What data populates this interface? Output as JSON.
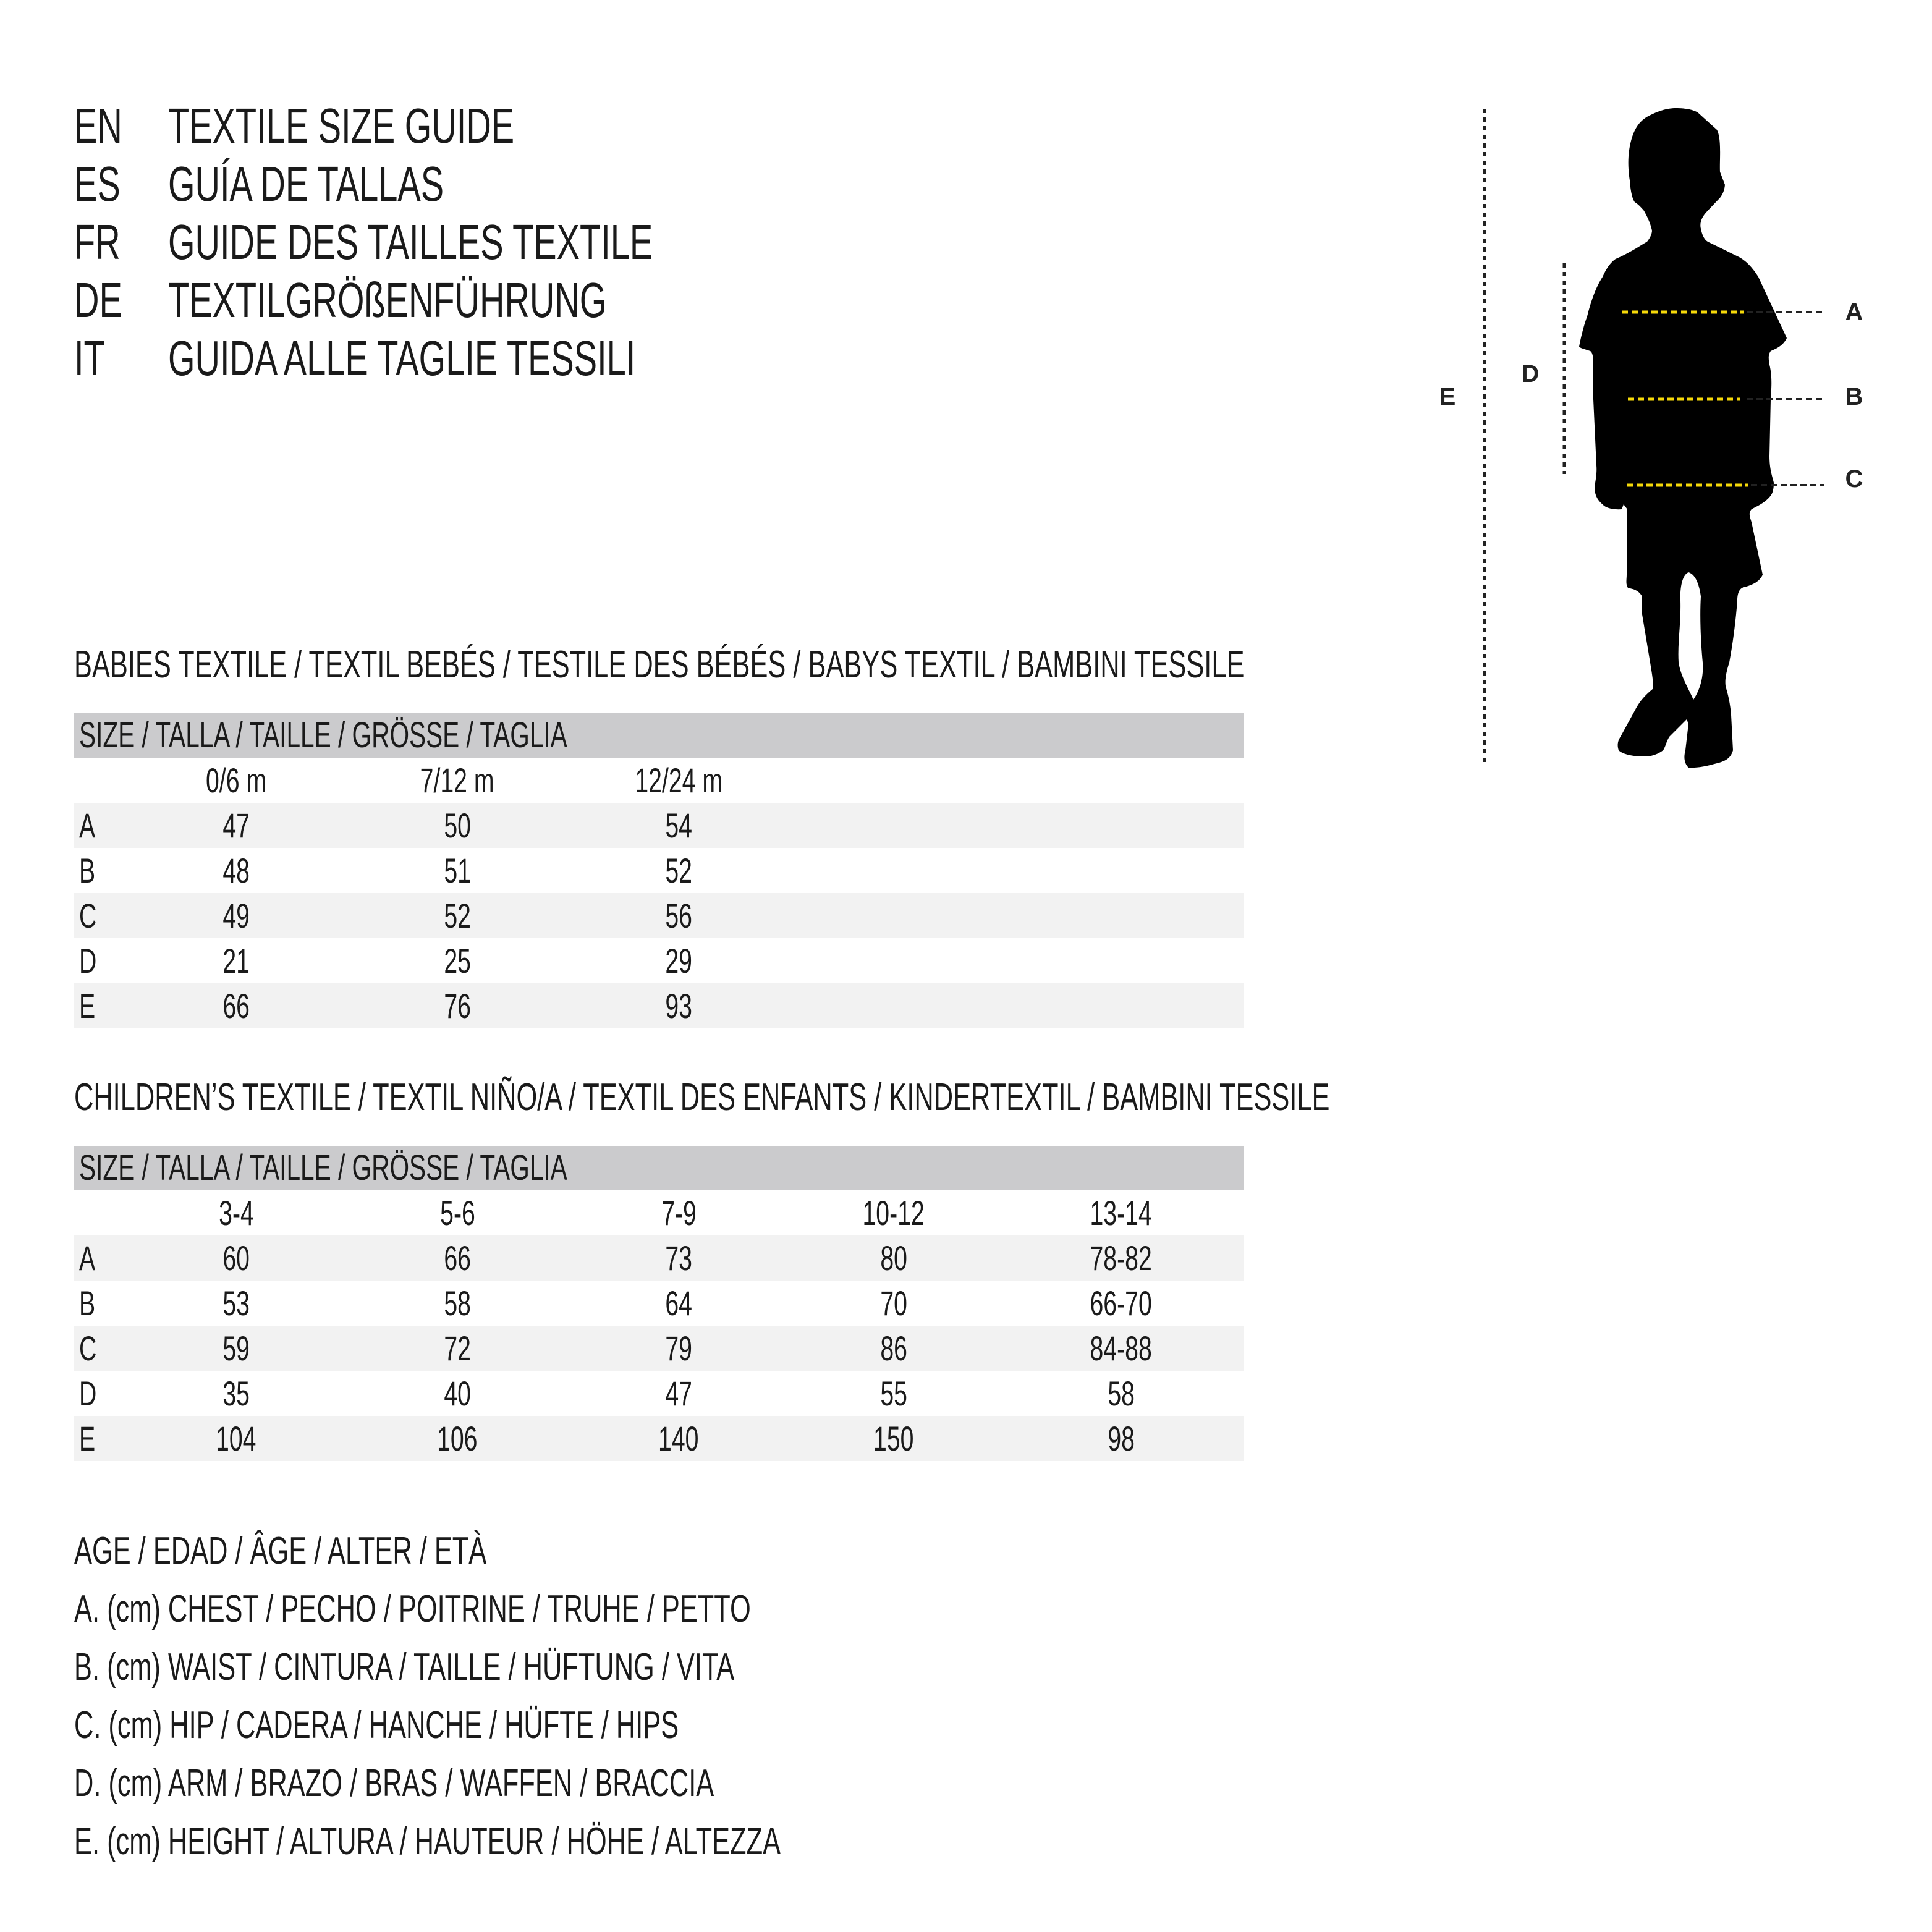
{
  "titles": [
    {
      "code": "EN",
      "text": "TEXTILE SIZE GUIDE"
    },
    {
      "code": "ES",
      "text": "GUÍA DE TALLAS"
    },
    {
      "code": "FR",
      "text": "GUIDE DES TAILLES TEXTILE"
    },
    {
      "code": "DE",
      "text": "TEXTILGRÖßENFÜHRUNG"
    },
    {
      "code": "IT",
      "text": "GUIDA ALLE TAGLIE TESSILI"
    }
  ],
  "babies": {
    "heading": "BABIES TEXTILE / TEXTIL BEBÉS / TESTILE DES BÉBÉS / BABYS TEXTIL / BAMBINI TESSILE",
    "size_header": "SIZE / TALLA / TAILLE / GRÖSSE / TAGLIA",
    "columns": [
      "0/6 m",
      "7/12 m",
      "12/24 m"
    ],
    "rows": [
      {
        "label": "A",
        "values": [
          "47",
          "50",
          "54"
        ]
      },
      {
        "label": "B",
        "values": [
          "48",
          "51",
          "52"
        ]
      },
      {
        "label": "C",
        "values": [
          "49",
          "52",
          "56"
        ]
      },
      {
        "label": "D",
        "values": [
          "21",
          "25",
          "29"
        ]
      },
      {
        "label": "E",
        "values": [
          "66",
          "76",
          "93"
        ]
      }
    ]
  },
  "children": {
    "heading": "CHILDREN’S TEXTILE / TEXTIL NIÑO/A / TEXTIL DES ENFANTS / KINDERTEXTIL / BAMBINI TESSILE",
    "size_header": "SIZE / TALLA / TAILLE / GRÖSSE / TAGLIA",
    "columns": [
      "3-4",
      "5-6",
      "7-9",
      "10-12",
      "13-14"
    ],
    "rows": [
      {
        "label": "A",
        "values": [
          "60",
          "66",
          "73",
          "80",
          "78-82"
        ]
      },
      {
        "label": "B",
        "values": [
          "53",
          "58",
          "64",
          "70",
          "66-70"
        ]
      },
      {
        "label": "C",
        "values": [
          "59",
          "72",
          "79",
          "86",
          "84-88"
        ]
      },
      {
        "label": "D",
        "values": [
          "35",
          "40",
          "47",
          "55",
          "58"
        ]
      },
      {
        "label": "E",
        "values": [
          "104",
          "106",
          "140",
          "150",
          "98"
        ]
      }
    ]
  },
  "legend": [
    "AGE / EDAD / ÂGE / ALTER / ETÀ",
    "A. (cm) CHEST / PECHO / POITRINE / TRUHE / PETTO",
    "B. (cm) WAIST / CINTURA / TAILLE / HÜFTUNG / VITA",
    "C. (cm) HIP / CADERA / HANCHE / HÜFTE / HIPS",
    "D. (cm) ARM / BRAZO / BRAS / WAFFEN / BRACCIA",
    "E. (cm) HEIGHT / ALTURA / HAUTEUR / HÖHE / ALTEZZA"
  ],
  "figure": {
    "labels": {
      "a": "A",
      "b": "B",
      "c": "C",
      "d": "D",
      "e": "E"
    },
    "colors": {
      "silhouette": "#000000",
      "measure_line": "#f5d90a",
      "guide_line": "#222222",
      "header_bg": "#cbcbcd",
      "row_bg": "#f2f2f2"
    }
  }
}
